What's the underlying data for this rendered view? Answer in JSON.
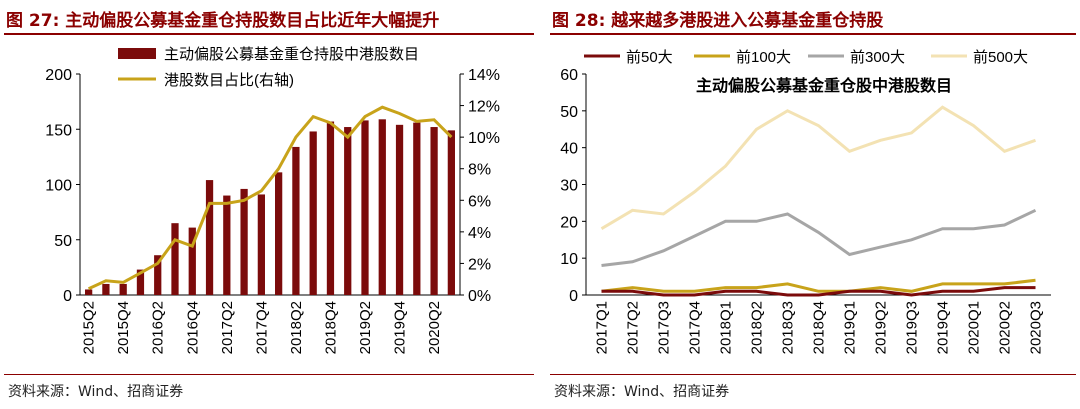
{
  "left": {
    "fig_label": "图 27:",
    "title": "主动偏股公募基金重仓持股数目占比近年大幅提升",
    "source": "资料来源：Wind、招商证券"
  },
  "right": {
    "fig_label": "图 28:",
    "title": "越来越多港股进入公募基金重仓持股",
    "source": "资料来源：Wind、招商证券"
  },
  "colors": {
    "bar": "#7b0b0b",
    "ratio_line": "#c8a31a",
    "top50": "#7b0b0b",
    "top100": "#c8a31a",
    "top300": "#a6a6a6",
    "top500": "#f3e2b3",
    "accent": "#8b0000"
  },
  "chart_data": [
    {
      "type": "bar",
      "title": "",
      "categories": [
        "2015Q2",
        "2015Q3",
        "2015Q4",
        "2016Q1",
        "2016Q2",
        "2016Q3",
        "2016Q4",
        "2017Q1",
        "2017Q2",
        "2017Q3",
        "2017Q4",
        "2018Q1",
        "2018Q2",
        "2018Q3",
        "2018Q4",
        "2019Q1",
        "2019Q2",
        "2019Q3",
        "2019Q4",
        "2020Q1",
        "2020Q2",
        "2020Q3"
      ],
      "x_tick_labels": [
        "2015Q2",
        "2015Q4",
        "2016Q2",
        "2016Q4",
        "2017Q2",
        "2017Q4",
        "2018Q2",
        "2018Q4",
        "2019Q2",
        "2019Q4",
        "2020Q2"
      ],
      "series": [
        {
          "name": "主动偏股公募基金重仓持股中港股数目",
          "type": "bar",
          "axis": "left",
          "values": [
            5,
            10,
            10,
            23,
            36,
            65,
            61,
            104,
            90,
            96,
            91,
            111,
            134,
            148,
            157,
            152,
            158,
            159,
            154,
            156,
            152,
            149
          ]
        },
        {
          "name": "港股数目占比(右轴)",
          "type": "line",
          "axis": "right",
          "values": [
            0.4,
            0.9,
            0.8,
            1.4,
            2.0,
            3.5,
            3.1,
            5.8,
            5.8,
            6.0,
            6.6,
            8.0,
            10.0,
            11.3,
            10.9,
            10.0,
            11.3,
            11.9,
            11.5,
            11.0,
            11.1,
            10.0
          ]
        }
      ],
      "ylim": [
        0,
        200
      ],
      "yticks": [
        0,
        50,
        100,
        150,
        200
      ],
      "y2lim": [
        0,
        14
      ],
      "y2ticks": [
        "0%",
        "2%",
        "4%",
        "6%",
        "8%",
        "10%",
        "12%",
        "14%"
      ],
      "y2tick_values": [
        0,
        2,
        4,
        6,
        8,
        10,
        12,
        14
      ],
      "legend_position": "top-left"
    },
    {
      "type": "line",
      "title": "主动偏股公募基金重仓股中港股数目",
      "categories": [
        "2017Q1",
        "2017Q2",
        "2017Q3",
        "2017Q4",
        "2018Q1",
        "2018Q2",
        "2018Q3",
        "2018Q4",
        "2019Q1",
        "2019Q2",
        "2019Q3",
        "2019Q4",
        "2020Q1",
        "2020Q2",
        "2020Q3"
      ],
      "series": [
        {
          "name": "前50大",
          "values": [
            1,
            1,
            0,
            0,
            1,
            1,
            0,
            0,
            1,
            1,
            0,
            1,
            1,
            2,
            2
          ]
        },
        {
          "name": "前100大",
          "values": [
            1,
            2,
            1,
            1,
            2,
            2,
            3,
            1,
            1,
            2,
            1,
            3,
            3,
            3,
            4
          ]
        },
        {
          "name": "前300大",
          "values": [
            8,
            9,
            12,
            16,
            20,
            20,
            22,
            17,
            11,
            13,
            15,
            18,
            18,
            19,
            23
          ]
        },
        {
          "name": "前500大",
          "values": [
            18,
            23,
            22,
            28,
            35,
            45,
            50,
            46,
            39,
            42,
            44,
            51,
            46,
            39,
            42
          ]
        }
      ],
      "ylim": [
        0,
        60
      ],
      "yticks": [
        0,
        10,
        20,
        30,
        40,
        50,
        60
      ],
      "legend_position": "top"
    }
  ]
}
